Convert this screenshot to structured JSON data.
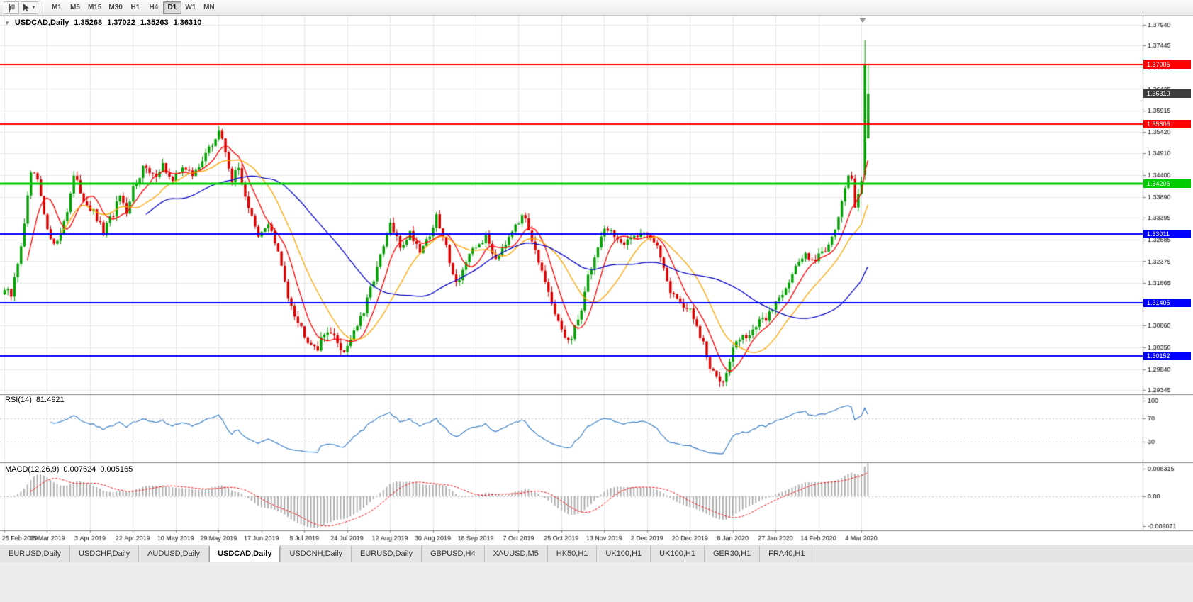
{
  "toolbar": {
    "timeframes": [
      "M1",
      "M5",
      "M15",
      "M30",
      "H1",
      "H4",
      "D1",
      "W1",
      "MN"
    ],
    "active_timeframe": "D1"
  },
  "tabbar": {
    "tabs": [
      "EURUSD,Daily",
      "USDCHF,Daily",
      "AUDUSD,Daily",
      "USDCAD,Daily",
      "USDCNH,Daily",
      "EURUSD,Daily",
      "GBPUSD,H4",
      "XAUUSD,M5",
      "HK50,H1",
      "UK100,H1",
      "UK100,H1",
      "GER30,H1",
      "FRA40,H1"
    ],
    "active_index": 3
  },
  "chart_data": {
    "type": "candlestick",
    "symbol": "USDCAD",
    "timeframe": "Daily",
    "quote": {
      "symbol": "USDCAD,Daily",
      "open": "1.35268",
      "high": "1.37022",
      "low": "1.35263",
      "close": "1.36310"
    },
    "price_axis": {
      "min": 1.2925,
      "max": 1.3815,
      "ticks": [
        "1.37940",
        "1.37445",
        "1.36935",
        "1.36425",
        "1.35915",
        "1.35420",
        "1.34910",
        "1.34400",
        "1.33890",
        "1.33395",
        "1.32885",
        "1.32375",
        "1.31865",
        "1.31355",
        "1.30860",
        "1.30350",
        "1.29840",
        "1.29345"
      ]
    },
    "x_labels": [
      "25 Feb 2019",
      "15 Mar 2019",
      "3 Apr 2019",
      "22 Apr 2019",
      "10 May 2019",
      "29 May 2019",
      "17 Jun 2019",
      "5 Jul 2019",
      "24 Jul 2019",
      "12 Aug 2019",
      "30 Aug 2019",
      "18 Sep 2019",
      "7 Oct 2019",
      "25 Oct 2019",
      "13 Nov 2019",
      "2 Dec 2019",
      "20 Dec 2019",
      "8 Jan 2020",
      "27 Jan 2020",
      "14 Feb 2020",
      "4 Mar 2020"
    ],
    "x_label_indices": [
      0,
      13,
      26,
      39,
      52,
      65,
      78,
      91,
      104,
      117,
      130,
      143,
      156,
      169,
      182,
      195,
      208,
      221,
      234,
      247,
      260
    ],
    "candle_count": 263,
    "close_anchors": [
      [
        0,
        1.317
      ],
      [
        2,
        1.3155
      ],
      [
        4,
        1.3235
      ],
      [
        6,
        1.332
      ],
      [
        8,
        1.3445
      ],
      [
        10,
        1.3425
      ],
      [
        13,
        1.3305
      ],
      [
        16,
        1.328
      ],
      [
        19,
        1.336
      ],
      [
        21,
        1.3435
      ],
      [
        24,
        1.3385
      ],
      [
        27,
        1.335
      ],
      [
        30,
        1.3305
      ],
      [
        33,
        1.335
      ],
      [
        35,
        1.339
      ],
      [
        37,
        1.334
      ],
      [
        39,
        1.341
      ],
      [
        42,
        1.346
      ],
      [
        45,
        1.3435
      ],
      [
        48,
        1.3465
      ],
      [
        51,
        1.342
      ],
      [
        54,
        1.3465
      ],
      [
        57,
        1.3435
      ],
      [
        60,
        1.348
      ],
      [
        63,
        1.351
      ],
      [
        65,
        1.3545
      ],
      [
        67,
        1.3495
      ],
      [
        69,
        1.343
      ],
      [
        71,
        1.3455
      ],
      [
        74,
        1.3365
      ],
      [
        77,
        1.329
      ],
      [
        80,
        1.333
      ],
      [
        83,
        1.3255
      ],
      [
        86,
        1.316
      ],
      [
        89,
        1.3095
      ],
      [
        92,
        1.3055
      ],
      [
        95,
        1.3035
      ],
      [
        98,
        1.308
      ],
      [
        101,
        1.3045
      ],
      [
        103,
        1.3025
      ],
      [
        106,
        1.3075
      ],
      [
        109,
        1.3115
      ],
      [
        112,
        1.32
      ],
      [
        115,
        1.327
      ],
      [
        117,
        1.3325
      ],
      [
        120,
        1.327
      ],
      [
        123,
        1.3305
      ],
      [
        126,
        1.3265
      ],
      [
        129,
        1.33
      ],
      [
        131,
        1.334
      ],
      [
        134,
        1.327
      ],
      [
        137,
        1.3185
      ],
      [
        140,
        1.3235
      ],
      [
        143,
        1.327
      ],
      [
        146,
        1.3295
      ],
      [
        149,
        1.3245
      ],
      [
        152,
        1.3285
      ],
      [
        155,
        1.333
      ],
      [
        158,
        1.334
      ],
      [
        161,
        1.327
      ],
      [
        164,
        1.318
      ],
      [
        167,
        1.311
      ],
      [
        170,
        1.306
      ],
      [
        172,
        1.305
      ],
      [
        175,
        1.313
      ],
      [
        177,
        1.32
      ],
      [
        180,
        1.327
      ],
      [
        182,
        1.332
      ],
      [
        185,
        1.33
      ],
      [
        188,
        1.327
      ],
      [
        191,
        1.33
      ],
      [
        194,
        1.331
      ],
      [
        196,
        1.3295
      ],
      [
        199,
        1.325
      ],
      [
        202,
        1.317
      ],
      [
        205,
        1.314
      ],
      [
        208,
        1.312
      ],
      [
        210,
        1.308
      ],
      [
        212,
        1.304
      ],
      [
        214,
        1.2985
      ],
      [
        216,
        1.2965
      ],
      [
        218,
        1.296
      ],
      [
        220,
        1.301
      ],
      [
        222,
        1.305
      ],
      [
        225,
        1.306
      ],
      [
        228,
        1.3085
      ],
      [
        231,
        1.3105
      ],
      [
        234,
        1.314
      ],
      [
        237,
        1.318
      ],
      [
        240,
        1.322
      ],
      [
        243,
        1.3255
      ],
      [
        246,
        1.3245
      ],
      [
        249,
        1.3265
      ],
      [
        251,
        1.33
      ],
      [
        253,
        1.334
      ],
      [
        255,
        1.34
      ],
      [
        256,
        1.3445
      ],
      [
        257,
        1.343
      ],
      [
        258,
        1.337
      ],
      [
        259,
        1.34
      ],
      [
        260,
        1.343
      ]
    ],
    "final_bars": [
      {
        "o": 1.344,
        "h": 1.3758,
        "l": 1.3428,
        "c": 1.37
      },
      {
        "o": 1.35268,
        "h": 1.37022,
        "l": 1.35263,
        "c": 1.3631
      }
    ],
    "noise_amplitude": 0.001,
    "wick_amplitude": 0.0013,
    "colors": {
      "bull": "#00A000",
      "bear": "#DB0000",
      "grid": "#E7E7E7",
      "separator": "#808080",
      "axis_text": "#000000"
    },
    "moving_averages": [
      {
        "period": 8,
        "color": "#FF0000"
      },
      {
        "period": 18,
        "color": "#FFA500"
      },
      {
        "period": 44,
        "color": "#0000CC"
      }
    ],
    "hlines": [
      {
        "price": 1.37005,
        "label": "1.37005",
        "color": "#FF0000",
        "width": 2
      },
      {
        "price": 1.35606,
        "label": "1.35606",
        "color": "#FF0000",
        "width": 2
      },
      {
        "price": 1.34206,
        "label": "1.34206",
        "color": "#00CC00",
        "width": 3
      },
      {
        "price": 1.33011,
        "label": "1.33011",
        "color": "#0000FF",
        "width": 2
      },
      {
        "price": 1.31405,
        "label": "1.31405",
        "color": "#0000FF",
        "width": 2
      },
      {
        "price": 1.30152,
        "label": "1.30152",
        "color": "#0000FF",
        "width": 2
      }
    ],
    "current_price": {
      "value": "1.36310",
      "bg": "#3C3C3C"
    },
    "rsi": {
      "label": "RSI(14)",
      "value": "81.4921",
      "period": 14,
      "ticks": [
        100,
        70,
        30
      ],
      "levels": [
        70,
        30
      ],
      "max": 103,
      "color": "#3C82C8"
    },
    "macd": {
      "label": "MACD(12,26,9)",
      "value_main": "0.007524",
      "value_signal": "0.005165",
      "fast": 12,
      "slow": 26,
      "signal": 9,
      "ticks": [
        "0.008315",
        "0.00",
        "-0.009071"
      ],
      "range": [
        -0.0097,
        0.0089
      ],
      "hist_color": "#A9A9A9",
      "signal_color": "#FF0000"
    }
  }
}
